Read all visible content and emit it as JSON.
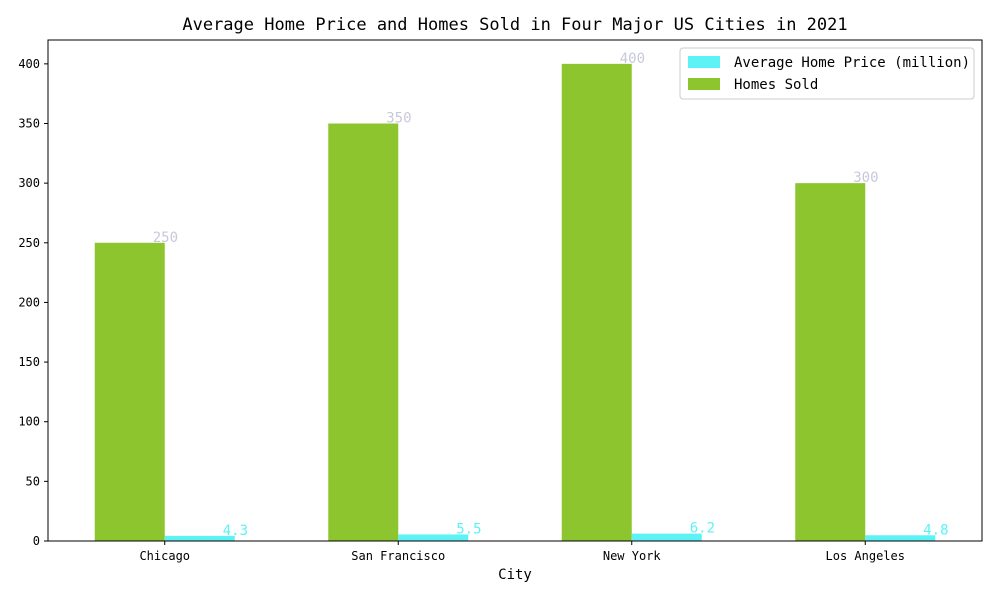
{
  "chart_data": {
    "type": "bar",
    "title": "Average Home Price and Homes Sold in Four Major US Cities in 2021",
    "xlabel": "City",
    "ylabel": "",
    "categories": [
      "Chicago",
      "San Francisco",
      "New York",
      "Los Angeles"
    ],
    "series": [
      {
        "name": "Homes Sold",
        "values": [
          250,
          350,
          400,
          300
        ],
        "color": "#8dc52e",
        "label_color": "#c8c8dc",
        "labels": [
          "250",
          "350",
          "400",
          "300"
        ]
      },
      {
        "name": "Average Home Price (million)",
        "values": [
          4.3,
          5.5,
          6.2,
          4.8
        ],
        "color": "#5cf2f6",
        "label_color": "#5cf2f6",
        "labels": [
          "4.3",
          "5.5",
          "6.2",
          "4.8"
        ]
      }
    ],
    "ylim": [
      0,
      420
    ],
    "yticks": [
      0,
      50,
      100,
      150,
      200,
      250,
      300,
      350,
      400
    ],
    "grid": false,
    "legend": {
      "position": "top-right",
      "order": [
        "Average Home Price (million)",
        "Homes Sold"
      ]
    }
  }
}
